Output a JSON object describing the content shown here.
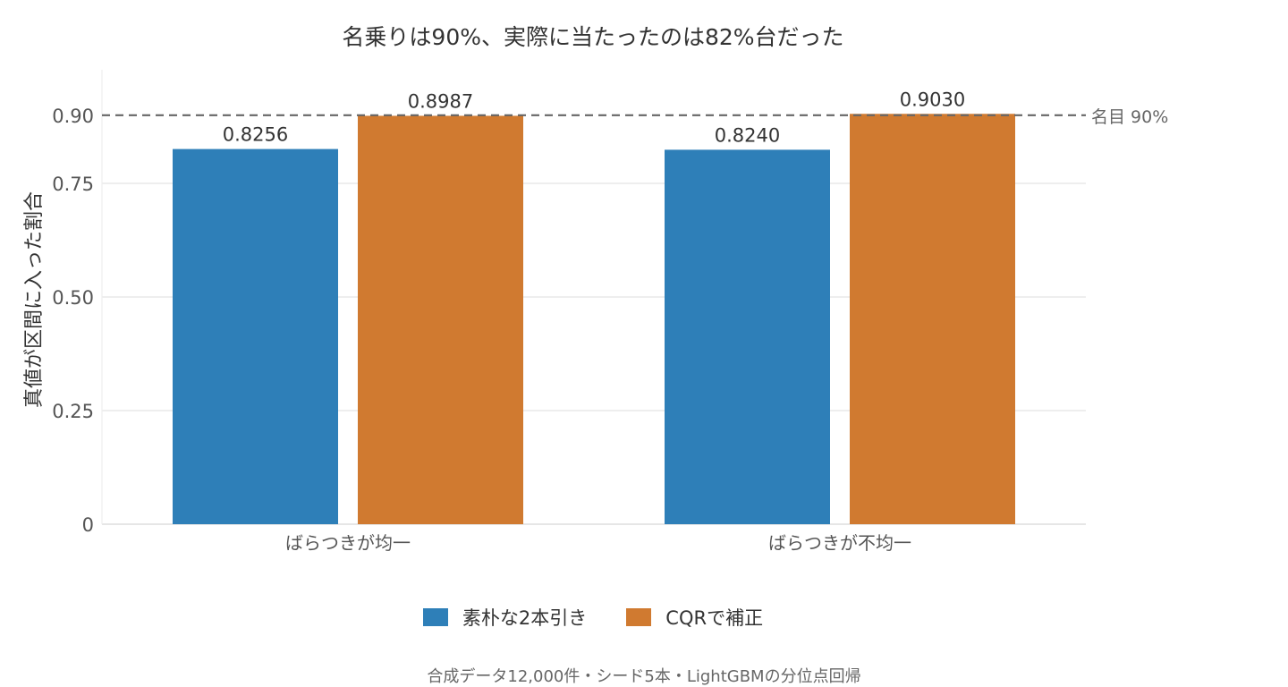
{
  "chart_data": {
    "type": "bar",
    "title": "名乗りは90%、実際に当たったのは82%台だった",
    "ylabel": "真値が区間に入った割合",
    "xlabel": "",
    "categories": [
      "ばらつきが均一",
      "ばらつきが不均一"
    ],
    "series": [
      {
        "name": "素朴な2本引き",
        "values": [
          0.8256,
          0.824
        ],
        "color": "#2e7fb8",
        "labels": [
          "0.8256",
          "0.8240"
        ]
      },
      {
        "name": "CQRで補正",
        "values": [
          0.8987,
          0.903
        ],
        "color": "#d07a30",
        "labels": [
          "0.8987",
          "0.9030"
        ]
      }
    ],
    "ylim": [
      0,
      1.0
    ],
    "yticks": [
      0,
      0.25,
      0.5,
      0.75,
      0.9
    ],
    "ytick_labels": [
      "0",
      "0.25",
      "0.50",
      "0.75",
      "0.90"
    ],
    "reference_line": {
      "value": 0.9,
      "label": "名目 90%",
      "color": "#666666"
    },
    "grid": true,
    "legend_position": "bottom"
  },
  "caption": "合成データ12,000件・シード5本・LightGBMの分位点回帰"
}
